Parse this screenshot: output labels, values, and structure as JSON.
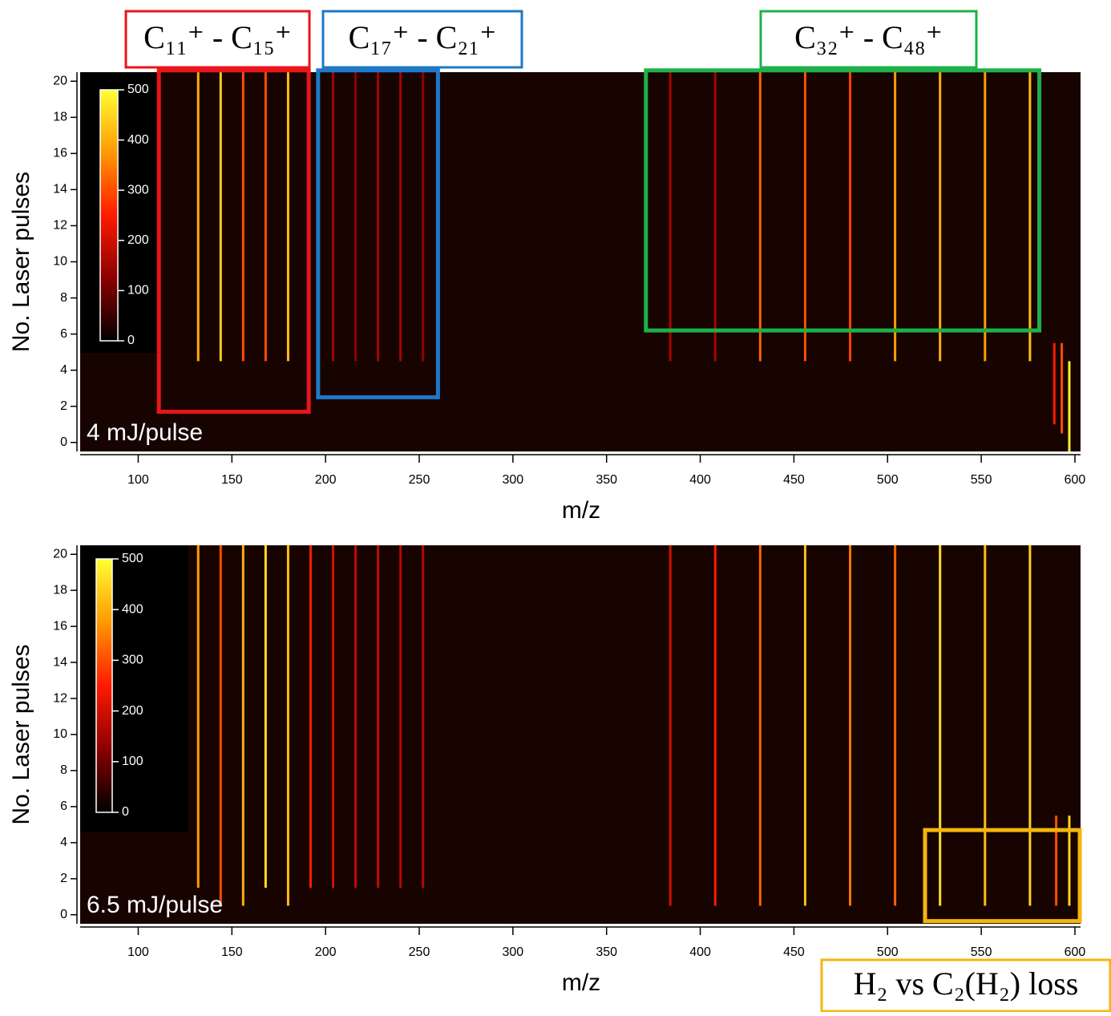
{
  "chart_data": [
    {
      "type": "heatmap",
      "annotation": "4 mJ/pulse",
      "xlabel": "m/z",
      "ylabel": "No. Laser pulses",
      "xlim": [
        69,
        603
      ],
      "ylim": [
        -0.5,
        20.5
      ],
      "xticks": [
        100,
        150,
        200,
        250,
        300,
        350,
        400,
        450,
        500,
        550,
        600
      ],
      "yticks": [
        0,
        2,
        4,
        6,
        8,
        10,
        12,
        14,
        16,
        18,
        20
      ],
      "colorbar": {
        "range": [
          0,
          500
        ],
        "ticks": [
          0,
          100,
          200,
          300,
          400,
          500
        ]
      },
      "colors": [
        "#000000",
        "#8b0000",
        "#ff1a00",
        "#ff9900",
        "#ffff33"
      ],
      "background": "#170400",
      "x": [
        132,
        144,
        156,
        168,
        180,
        204,
        216,
        228,
        240,
        252,
        384,
        408,
        432,
        456,
        480,
        504,
        528,
        552,
        576,
        589,
        593,
        597
      ],
      "y_start": [
        4.5,
        4.5,
        4.5,
        4.5,
        4.5,
        4.5,
        4.5,
        4.5,
        4.5,
        4.5,
        4.5,
        4.5,
        4.5,
        4.5,
        4.5,
        4.5,
        4.5,
        4.5,
        4.5,
        1,
        0.5,
        -0.5
      ],
      "y_end": [
        20.5,
        20.5,
        20.5,
        20.5,
        20.5,
        20.5,
        20.5,
        20.5,
        20.5,
        20.5,
        20.5,
        20.5,
        20.5,
        20.5,
        20.5,
        20.5,
        20.5,
        20.5,
        20.5,
        5.5,
        5.5,
        4.5
      ],
      "values": [
        400,
        440,
        300,
        300,
        420,
        150,
        130,
        150,
        150,
        130,
        150,
        150,
        320,
        300,
        290,
        380,
        400,
        380,
        420,
        250,
        300,
        480
      ],
      "regions": [
        {
          "label": "C₁₁⁺ - C₁₅⁺",
          "color": "#e8161b",
          "xrange": [
            111,
            191
          ],
          "yrange": [
            1.7,
            20.6
          ]
        },
        {
          "label": "C₁₇⁺ - C₂₁⁺",
          "color": "#1f78c8",
          "xrange": [
            196,
            260
          ],
          "yrange": [
            2.5,
            20.6
          ]
        },
        {
          "label": "C₃₂⁺ - C₄₈⁺",
          "color": "#1fb04a",
          "xrange": [
            371,
            581
          ],
          "yrange": [
            6.2,
            20.6
          ]
        }
      ]
    },
    {
      "type": "heatmap",
      "annotation": "6.5 mJ/pulse",
      "xlabel": "m/z",
      "ylabel": "No. Laser pulses",
      "xlim": [
        69,
        603
      ],
      "ylim": [
        -0.5,
        20.5
      ],
      "xticks": [
        100,
        150,
        200,
        250,
        300,
        350,
        400,
        450,
        500,
        550,
        600
      ],
      "yticks": [
        0,
        2,
        4,
        6,
        8,
        10,
        12,
        14,
        16,
        18,
        20
      ],
      "colorbar": {
        "range": [
          0,
          500
        ],
        "ticks": [
          0,
          100,
          200,
          300,
          400,
          500
        ]
      },
      "colors": [
        "#000000",
        "#8b0000",
        "#ff1a00",
        "#ff9900",
        "#ffff33"
      ],
      "background": "#170400",
      "x": [
        132,
        144,
        156,
        168,
        180,
        192,
        204,
        216,
        228,
        240,
        252,
        384,
        408,
        432,
        456,
        480,
        504,
        528,
        552,
        576,
        590,
        597
      ],
      "y_start": [
        1.5,
        0.5,
        0.5,
        1.5,
        0.5,
        1.5,
        1.5,
        1.5,
        1.5,
        1.5,
        1.5,
        0.5,
        0.5,
        0.5,
        0.5,
        0.5,
        0.5,
        0.5,
        0.5,
        0.5,
        0.5,
        0.5
      ],
      "y_end": [
        20.5,
        20.5,
        20.5,
        20.5,
        20.5,
        20.5,
        20.5,
        20.5,
        20.5,
        20.5,
        20.5,
        20.5,
        20.5,
        20.5,
        20.5,
        20.5,
        20.5,
        20.5,
        20.5,
        20.5,
        5.5,
        5.5
      ],
      "values": [
        380,
        300,
        400,
        460,
        420,
        250,
        200,
        180,
        180,
        170,
        170,
        200,
        250,
        320,
        420,
        340,
        320,
        460,
        420,
        440,
        300,
        450
      ],
      "regions": [
        {
          "label": "H₂ vs C₂(H₂) loss",
          "color": "#f5b50f",
          "xrange": [
            520,
            602.6
          ],
          "yrange": [
            -0.35,
            4.7
          ]
        }
      ]
    }
  ]
}
